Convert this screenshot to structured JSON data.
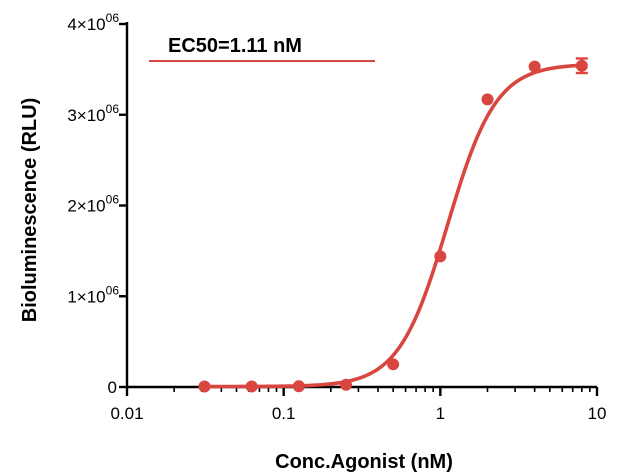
{
  "chart_data": {
    "type": "scatter",
    "title": "",
    "xlabel": "Conc.Agonist (nM)",
    "ylabel": "Bioluminescence (RLU)",
    "x_scale": "log",
    "xlim": [
      0.01,
      10
    ],
    "ylim": [
      0,
      4000000
    ],
    "x_ticks": [
      {
        "value": 0.01,
        "label": "0.01"
      },
      {
        "value": 0.1,
        "label": "0.1"
      },
      {
        "value": 1,
        "label": "1"
      },
      {
        "value": 10,
        "label": "10"
      }
    ],
    "y_ticks": [
      {
        "value": 0,
        "mantissa": "0",
        "exponent": ""
      },
      {
        "value": 1000000,
        "mantissa": "1×10",
        "exponent": "06"
      },
      {
        "value": 2000000,
        "mantissa": "2×10",
        "exponent": "06"
      },
      {
        "value": 3000000,
        "mantissa": "3×10",
        "exponent": "06"
      },
      {
        "value": 4000000,
        "mantissa": "4×10",
        "exponent": "06"
      }
    ],
    "grid": false,
    "series": [
      {
        "name": "EC50=1.11 nM",
        "color": "#d9453f",
        "points": [
          {
            "x": 0.03125,
            "y": 5000
          },
          {
            "x": 0.0625,
            "y": 5000
          },
          {
            "x": 0.125,
            "y": 8000
          },
          {
            "x": 0.25,
            "y": 25000
          },
          {
            "x": 0.5,
            "y": 250000
          },
          {
            "x": 1,
            "y": 1440000
          },
          {
            "x": 2,
            "y": 3170000
          },
          {
            "x": 4,
            "y": 3530000
          },
          {
            "x": 8,
            "y": 3540000
          }
        ],
        "error_bar_last": 80000,
        "fit": {
          "model": "4PL",
          "bottom": 5000,
          "top": 3560000,
          "ec50": 1.11,
          "hill": 2.8
        }
      }
    ],
    "legend": {
      "text": "EC50=1.11 nM",
      "position": "top-left"
    }
  }
}
